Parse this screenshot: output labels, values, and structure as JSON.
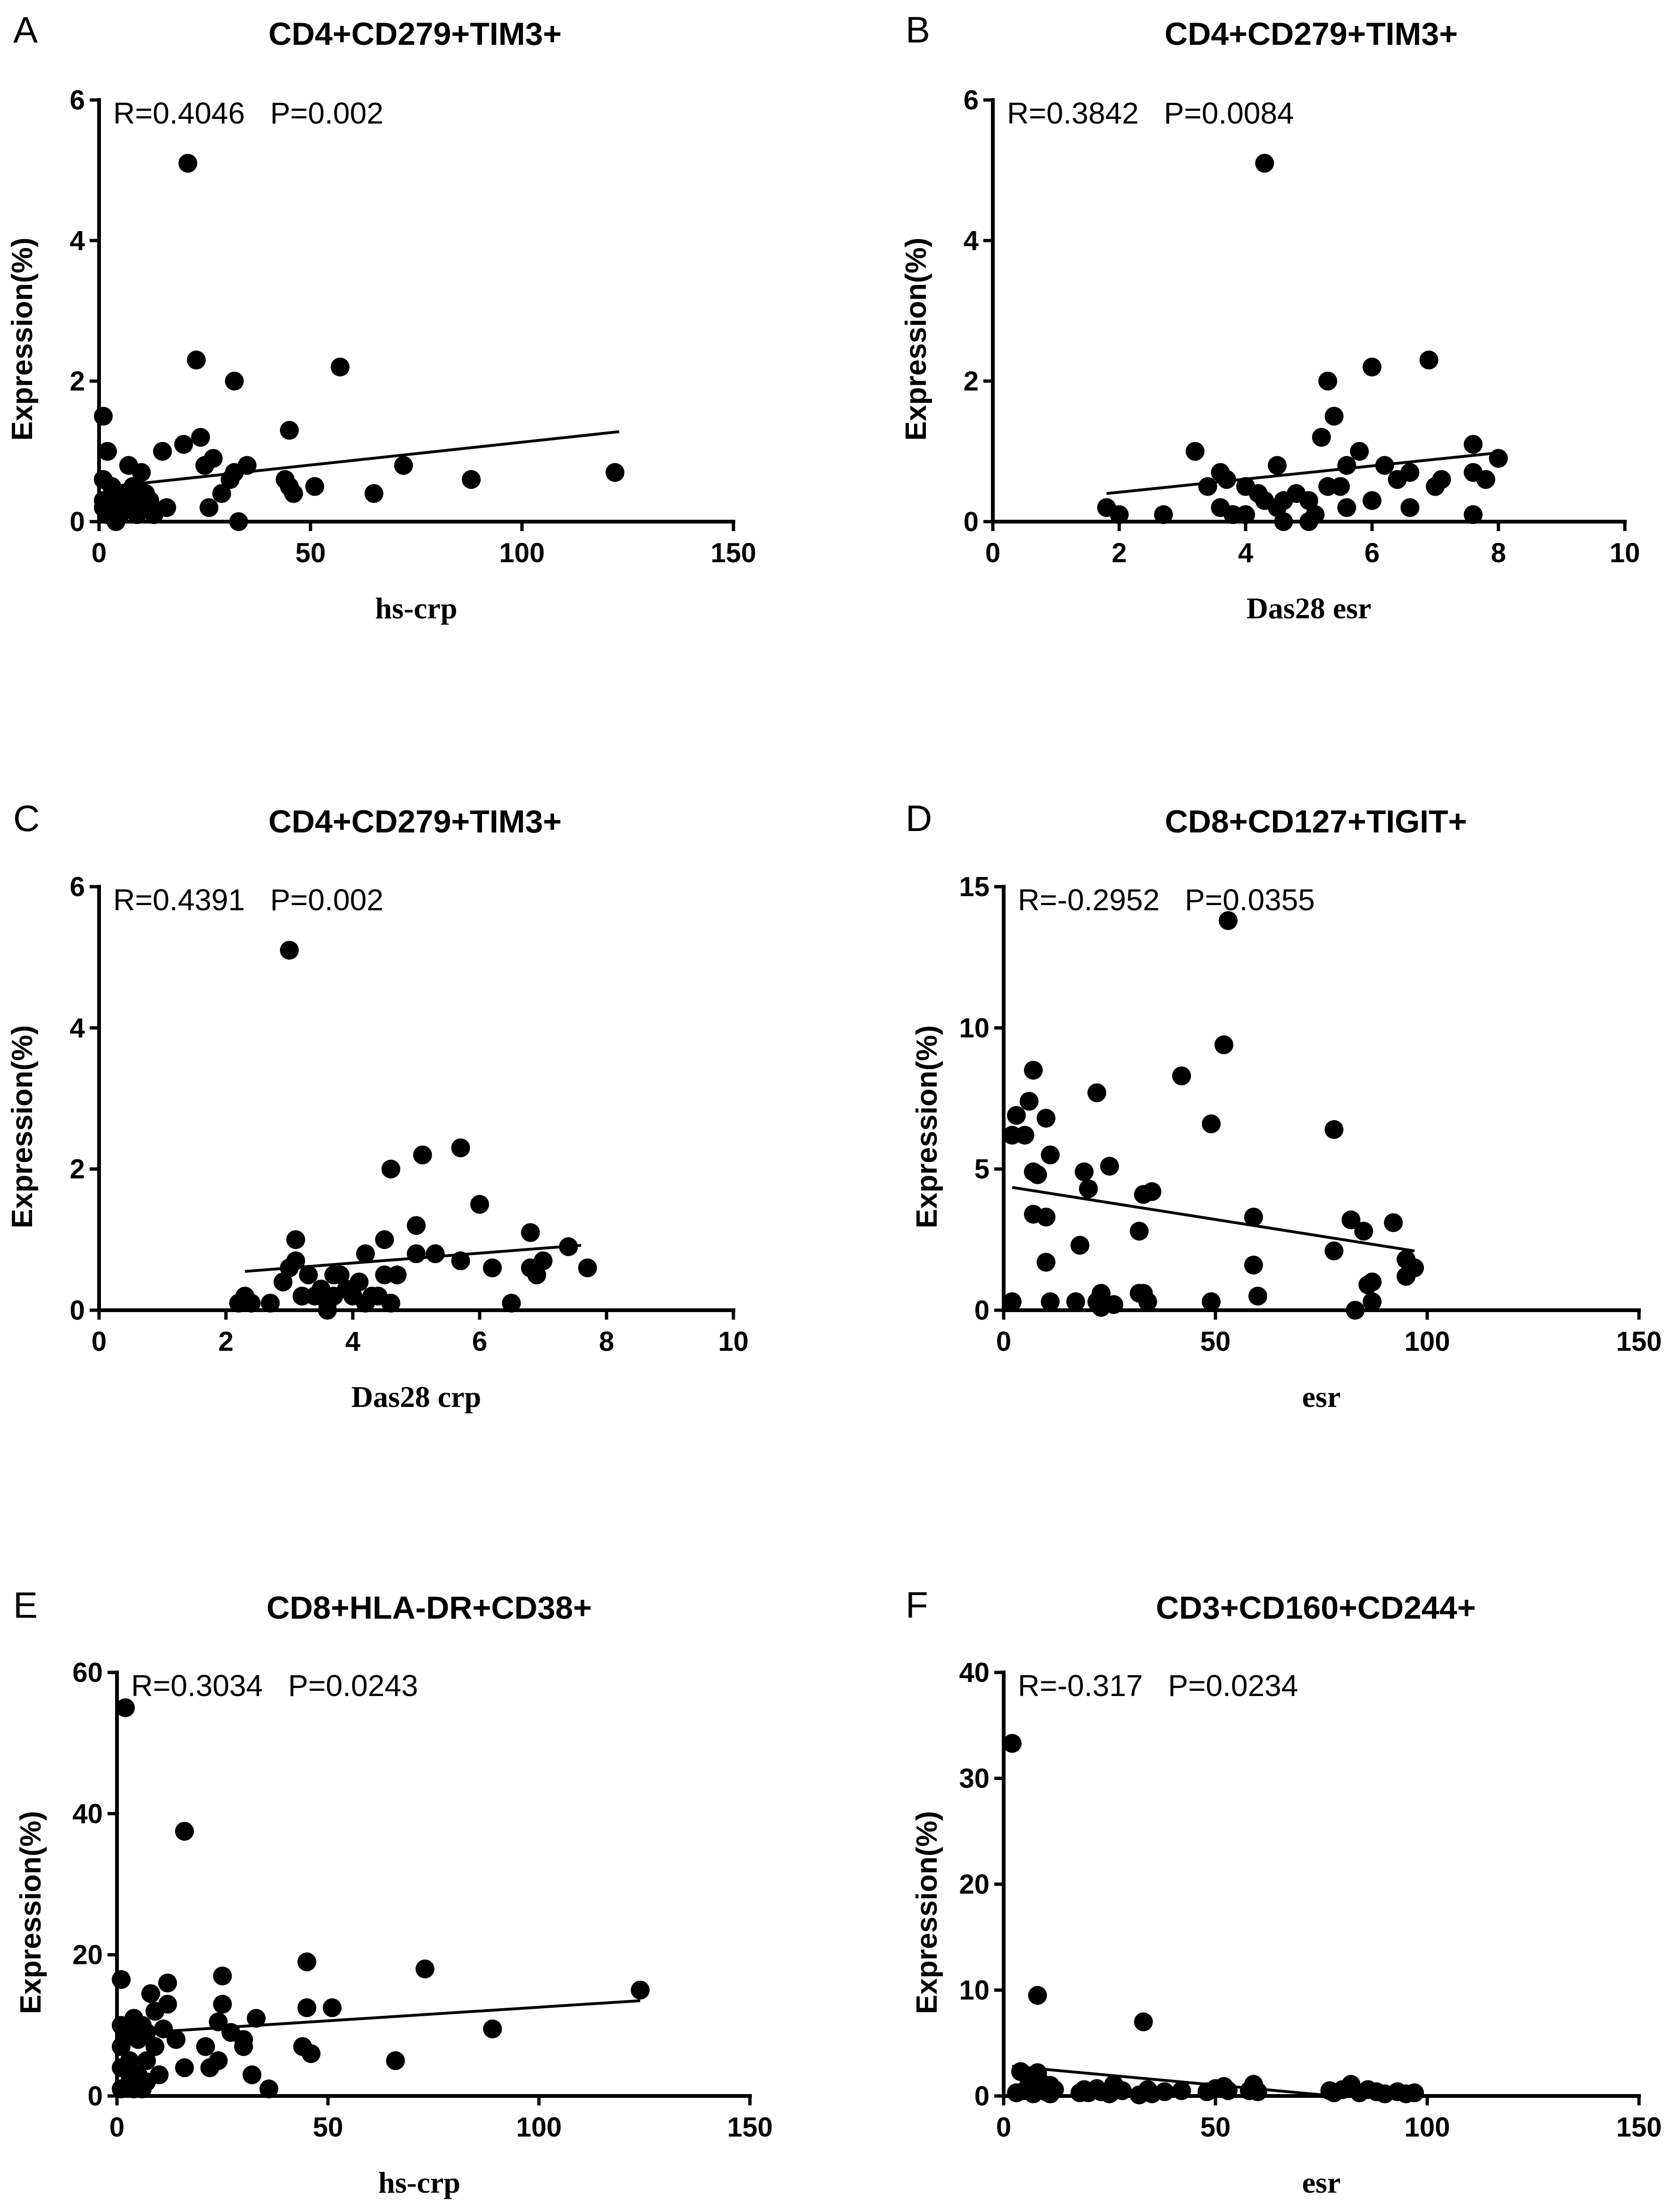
{
  "chart_data": [
    {
      "type": "scatter",
      "panel": "A",
      "title": "CD4+CD279+TIM3+",
      "stat": "R=0.4046   P=0.002",
      "xlabel": "hs-crp",
      "ylabel": "Expression(%)",
      "xlim": [
        0,
        150
      ],
      "ylim": [
        0,
        6
      ],
      "xticks": [
        0,
        50,
        100,
        150
      ],
      "yticks": [
        0,
        2,
        4,
        6
      ],
      "fit": [
        [
          3,
          0.5
        ],
        [
          123,
          1.28
        ]
      ],
      "points": [
        [
          1,
          1.5
        ],
        [
          1,
          0.6
        ],
        [
          2,
          1.0
        ],
        [
          1,
          0.3
        ],
        [
          1,
          0.2
        ],
        [
          2,
          0.1
        ],
        [
          3,
          0.5
        ],
        [
          3,
          0.3
        ],
        [
          4,
          0.2
        ],
        [
          4,
          0.0
        ],
        [
          5,
          0.4
        ],
        [
          5,
          0.1
        ],
        [
          6,
          0.2
        ],
        [
          7,
          0.8
        ],
        [
          7,
          0.3
        ],
        [
          8,
          0.5
        ],
        [
          9,
          0.1
        ],
        [
          10,
          0.7
        ],
        [
          10,
          0.2
        ],
        [
          11,
          0.4
        ],
        [
          12,
          0.3
        ],
        [
          13,
          0.1
        ],
        [
          15,
          1.0
        ],
        [
          16,
          0.2
        ],
        [
          20,
          1.1
        ],
        [
          21,
          5.1
        ],
        [
          23,
          2.3
        ],
        [
          24,
          1.2
        ],
        [
          25,
          0.8
        ],
        [
          26,
          0.2
        ],
        [
          27,
          0.9
        ],
        [
          29,
          0.4
        ],
        [
          31,
          0.6
        ],
        [
          32,
          2.0
        ],
        [
          32,
          0.7
        ],
        [
          33,
          0.0
        ],
        [
          35,
          0.8
        ],
        [
          44,
          0.6
        ],
        [
          45,
          0.5
        ],
        [
          45,
          1.3
        ],
        [
          46,
          0.4
        ],
        [
          51,
          0.5
        ],
        [
          57,
          2.2
        ],
        [
          65,
          0.4
        ],
        [
          72,
          0.8
        ],
        [
          88,
          0.6
        ],
        [
          122,
          0.7
        ]
      ]
    },
    {
      "type": "scatter",
      "panel": "B",
      "title": "CD4+CD279+TIM3+",
      "stat": "R=0.3842   P=0.0084",
      "xlabel": "Das28 esr",
      "ylabel": "Expression(%)",
      "xlim": [
        0,
        10
      ],
      "ylim": [
        0,
        6
      ],
      "xticks": [
        0,
        2,
        4,
        6,
        8,
        10
      ],
      "yticks": [
        0,
        2,
        4,
        6
      ],
      "fit": [
        [
          1.8,
          0.4
        ],
        [
          8.0,
          0.98
        ]
      ],
      "points": [
        [
          1.8,
          0.2
        ],
        [
          2.0,
          0.1
        ],
        [
          2.7,
          0.1
        ],
        [
          3.2,
          1.0
        ],
        [
          3.4,
          0.5
        ],
        [
          3.6,
          0.7
        ],
        [
          3.6,
          0.2
        ],
        [
          3.7,
          0.6
        ],
        [
          3.8,
          0.1
        ],
        [
          4.0,
          0.1
        ],
        [
          4.0,
          0.5
        ],
        [
          4.2,
          0.4
        ],
        [
          4.3,
          5.1
        ],
        [
          4.3,
          0.3
        ],
        [
          4.5,
          0.8
        ],
        [
          4.5,
          0.2
        ],
        [
          4.6,
          0.3
        ],
        [
          4.6,
          0.0
        ],
        [
          4.8,
          0.4
        ],
        [
          5.0,
          0.3
        ],
        [
          5.0,
          0.0
        ],
        [
          5.1,
          0.1
        ],
        [
          5.2,
          1.2
        ],
        [
          5.3,
          2.0
        ],
        [
          5.3,
          0.5
        ],
        [
          5.4,
          1.5
        ],
        [
          5.5,
          0.5
        ],
        [
          5.6,
          0.8
        ],
        [
          5.6,
          0.2
        ],
        [
          5.8,
          1.0
        ],
        [
          6.0,
          2.2
        ],
        [
          6.0,
          0.3
        ],
        [
          6.2,
          0.8
        ],
        [
          6.4,
          0.6
        ],
        [
          6.6,
          0.7
        ],
        [
          6.6,
          0.2
        ],
        [
          6.9,
          2.3
        ],
        [
          7.0,
          0.5
        ],
        [
          7.1,
          0.6
        ],
        [
          7.6,
          1.1
        ],
        [
          7.6,
          0.7
        ],
        [
          7.6,
          0.1
        ],
        [
          7.8,
          0.6
        ],
        [
          8.0,
          0.9
        ]
      ]
    },
    {
      "type": "scatter",
      "panel": "C",
      "title": "CD4+CD279+TIM3+",
      "stat": "R=0.4391   P=0.002",
      "xlabel": "Das28 crp",
      "ylabel": "Expression(%)",
      "xlim": [
        0,
        10
      ],
      "ylim": [
        0,
        6
      ],
      "xticks": [
        0,
        2,
        4,
        6,
        8,
        10
      ],
      "yticks": [
        0,
        2,
        4,
        6
      ],
      "fit": [
        [
          2.3,
          0.55
        ],
        [
          7.6,
          0.92
        ]
      ],
      "points": [
        [
          2.2,
          0.1
        ],
        [
          2.3,
          0.2
        ],
        [
          2.4,
          0.1
        ],
        [
          2.7,
          0.1
        ],
        [
          2.9,
          0.4
        ],
        [
          3.0,
          5.1
        ],
        [
          3.0,
          0.6
        ],
        [
          3.1,
          0.7
        ],
        [
          3.1,
          1.0
        ],
        [
          3.2,
          0.2
        ],
        [
          3.3,
          0.5
        ],
        [
          3.4,
          0.2
        ],
        [
          3.5,
          0.3
        ],
        [
          3.6,
          0.1
        ],
        [
          3.6,
          0.0
        ],
        [
          3.7,
          0.5
        ],
        [
          3.7,
          0.2
        ],
        [
          3.8,
          0.5
        ],
        [
          3.9,
          0.3
        ],
        [
          4.0,
          0.2
        ],
        [
          4.1,
          0.4
        ],
        [
          4.2,
          0.1
        ],
        [
          4.2,
          0.8
        ],
        [
          4.3,
          0.2
        ],
        [
          4.4,
          0.2
        ],
        [
          4.5,
          0.5
        ],
        [
          4.5,
          1.0
        ],
        [
          4.6,
          0.1
        ],
        [
          4.6,
          2.0
        ],
        [
          4.7,
          0.5
        ],
        [
          5.0,
          0.8
        ],
        [
          5.0,
          1.2
        ],
        [
          5.1,
          2.2
        ],
        [
          5.3,
          0.8
        ],
        [
          5.7,
          0.7
        ],
        [
          5.7,
          2.3
        ],
        [
          6.0,
          1.5
        ],
        [
          6.2,
          0.6
        ],
        [
          6.5,
          0.1
        ],
        [
          6.8,
          0.6
        ],
        [
          6.8,
          1.1
        ],
        [
          6.9,
          0.5
        ],
        [
          7.0,
          0.7
        ],
        [
          7.4,
          0.9
        ],
        [
          7.7,
          0.6
        ]
      ]
    },
    {
      "type": "scatter",
      "panel": "D",
      "title": "CD8+CD127+TIGIT+",
      "stat": "R=-0.2952   P=0.0355",
      "xlabel": "esr",
      "ylabel": "Expression(%)",
      "xlim": [
        0,
        150
      ],
      "ylim": [
        0,
        15
      ],
      "xticks": [
        0,
        50,
        100,
        150
      ],
      "yticks": [
        0,
        5,
        10,
        15
      ],
      "fit": [
        [
          2,
          4.35
        ],
        [
          97,
          2.1
        ]
      ],
      "points": [
        [
          2,
          6.2
        ],
        [
          2,
          0.3
        ],
        [
          3,
          6.9
        ],
        [
          5,
          6.2
        ],
        [
          6,
          7.4
        ],
        [
          7,
          8.5
        ],
        [
          7,
          4.9
        ],
        [
          7,
          3.4
        ],
        [
          8,
          4.8
        ],
        [
          10,
          1.7
        ],
        [
          10,
          3.3
        ],
        [
          10,
          6.8
        ],
        [
          11,
          5.5
        ],
        [
          11,
          0.3
        ],
        [
          17,
          0.3
        ],
        [
          18,
          2.3
        ],
        [
          19,
          4.9
        ],
        [
          20,
          4.3
        ],
        [
          22,
          7.7
        ],
        [
          22,
          0.3
        ],
        [
          23,
          0.6
        ],
        [
          23,
          0.1
        ],
        [
          25,
          5.1
        ],
        [
          26,
          0.2
        ],
        [
          32,
          0.6
        ],
        [
          32,
          2.8
        ],
        [
          33,
          4.1
        ],
        [
          33,
          0.6
        ],
        [
          34,
          0.3
        ],
        [
          35,
          4.2
        ],
        [
          42,
          8.3
        ],
        [
          49,
          0.3
        ],
        [
          49,
          6.6
        ],
        [
          52,
          9.4
        ],
        [
          53,
          13.8
        ],
        [
          59,
          3.3
        ],
        [
          59,
          1.6
        ],
        [
          60,
          0.5
        ],
        [
          78,
          6.4
        ],
        [
          78,
          2.1
        ],
        [
          82,
          3.2
        ],
        [
          83,
          0.0
        ],
        [
          85,
          2.8
        ],
        [
          86,
          0.9
        ],
        [
          87,
          1.0
        ],
        [
          87,
          0.3
        ],
        [
          92,
          3.1
        ],
        [
          95,
          1.8
        ],
        [
          95,
          1.2
        ],
        [
          97,
          1.5
        ]
      ]
    },
    {
      "type": "scatter",
      "panel": "E",
      "title": "CD8+HLA-DR+CD38+",
      "stat": "R=0.3034   P=0.0243",
      "xlabel": "hs-crp",
      "ylabel": "Expression(%)",
      "xlim": [
        0,
        150
      ],
      "ylim": [
        0,
        60
      ],
      "xticks": [
        0,
        50,
        100,
        150
      ],
      "yticks": [
        0,
        20,
        40,
        60
      ],
      "fit": [
        [
          2,
          8.8
        ],
        [
          124,
          13.5
        ]
      ],
      "points": [
        [
          1,
          16.5
        ],
        [
          1,
          10
        ],
        [
          1,
          7
        ],
        [
          1,
          4
        ],
        [
          1,
          1
        ],
        [
          2,
          9
        ],
        [
          2,
          55
        ],
        [
          3,
          10
        ],
        [
          3,
          5
        ],
        [
          3,
          2
        ],
        [
          4,
          11
        ],
        [
          4,
          1
        ],
        [
          5,
          8
        ],
        [
          5,
          3
        ],
        [
          6,
          10
        ],
        [
          6,
          1
        ],
        [
          7,
          9
        ],
        [
          7,
          5
        ],
        [
          7,
          2
        ],
        [
          8,
          14.5
        ],
        [
          9,
          12
        ],
        [
          9,
          7
        ],
        [
          10,
          3
        ],
        [
          11,
          9.5
        ],
        [
          12,
          16
        ],
        [
          12,
          13
        ],
        [
          14,
          8
        ],
        [
          16,
          37.5
        ],
        [
          16,
          4
        ],
        [
          21,
          7
        ],
        [
          22,
          4
        ],
        [
          24,
          10.5
        ],
        [
          24,
          5
        ],
        [
          25,
          17
        ],
        [
          25,
          13
        ],
        [
          27,
          9
        ],
        [
          30,
          8
        ],
        [
          30,
          7
        ],
        [
          32,
          3
        ],
        [
          33,
          11
        ],
        [
          36,
          1
        ],
        [
          44,
          7
        ],
        [
          45,
          19
        ],
        [
          45,
          12.5
        ],
        [
          46,
          6
        ],
        [
          51,
          12.5
        ],
        [
          66,
          5
        ],
        [
          73,
          18
        ],
        [
          89,
          9.5
        ],
        [
          124,
          15
        ]
      ]
    },
    {
      "type": "scatter",
      "panel": "F",
      "title": "CD3+CD160+CD244+",
      "stat": "R=-0.317   P=0.0234",
      "xlabel": "esr",
      "ylabel": "Expression(%)",
      "xlim": [
        0,
        150
      ],
      "ylim": [
        0,
        40
      ],
      "xticks": [
        0,
        50,
        100,
        150
      ],
      "yticks": [
        0,
        10,
        20,
        30,
        40
      ],
      "fit": [
        [
          2,
          2.8
        ],
        [
          78,
          0
        ]
      ],
      "points": [
        [
          2,
          33.3
        ],
        [
          3,
          0.3
        ],
        [
          4,
          2.3
        ],
        [
          5,
          0.5
        ],
        [
          6,
          1.5
        ],
        [
          7,
          0.2
        ],
        [
          8,
          9.5
        ],
        [
          8,
          2.2
        ],
        [
          9,
          1.2
        ],
        [
          10,
          0.4
        ],
        [
          11,
          1.0
        ],
        [
          11,
          0.2
        ],
        [
          12,
          0.6
        ],
        [
          18,
          0.3
        ],
        [
          19,
          0.6
        ],
        [
          20,
          0.3
        ],
        [
          22,
          0.7
        ],
        [
          23,
          0.4
        ],
        [
          25,
          0.2
        ],
        [
          26,
          1.1
        ],
        [
          28,
          0.5
        ],
        [
          32,
          0.1
        ],
        [
          33,
          7.0
        ],
        [
          34,
          0.6
        ],
        [
          35,
          0.2
        ],
        [
          38,
          0.4
        ],
        [
          42,
          0.5
        ],
        [
          48,
          0.4
        ],
        [
          50,
          0.7
        ],
        [
          52,
          0.9
        ],
        [
          53,
          0.5
        ],
        [
          58,
          0.5
        ],
        [
          59,
          1.1
        ],
        [
          60,
          0.4
        ],
        [
          77,
          0.5
        ],
        [
          78,
          0.3
        ],
        [
          80,
          0.6
        ],
        [
          82,
          1.1
        ],
        [
          84,
          0.3
        ],
        [
          86,
          0.6
        ],
        [
          88,
          0.4
        ],
        [
          90,
          0.2
        ],
        [
          93,
          0.4
        ],
        [
          95,
          0.2
        ],
        [
          97,
          0.3
        ]
      ]
    }
  ]
}
